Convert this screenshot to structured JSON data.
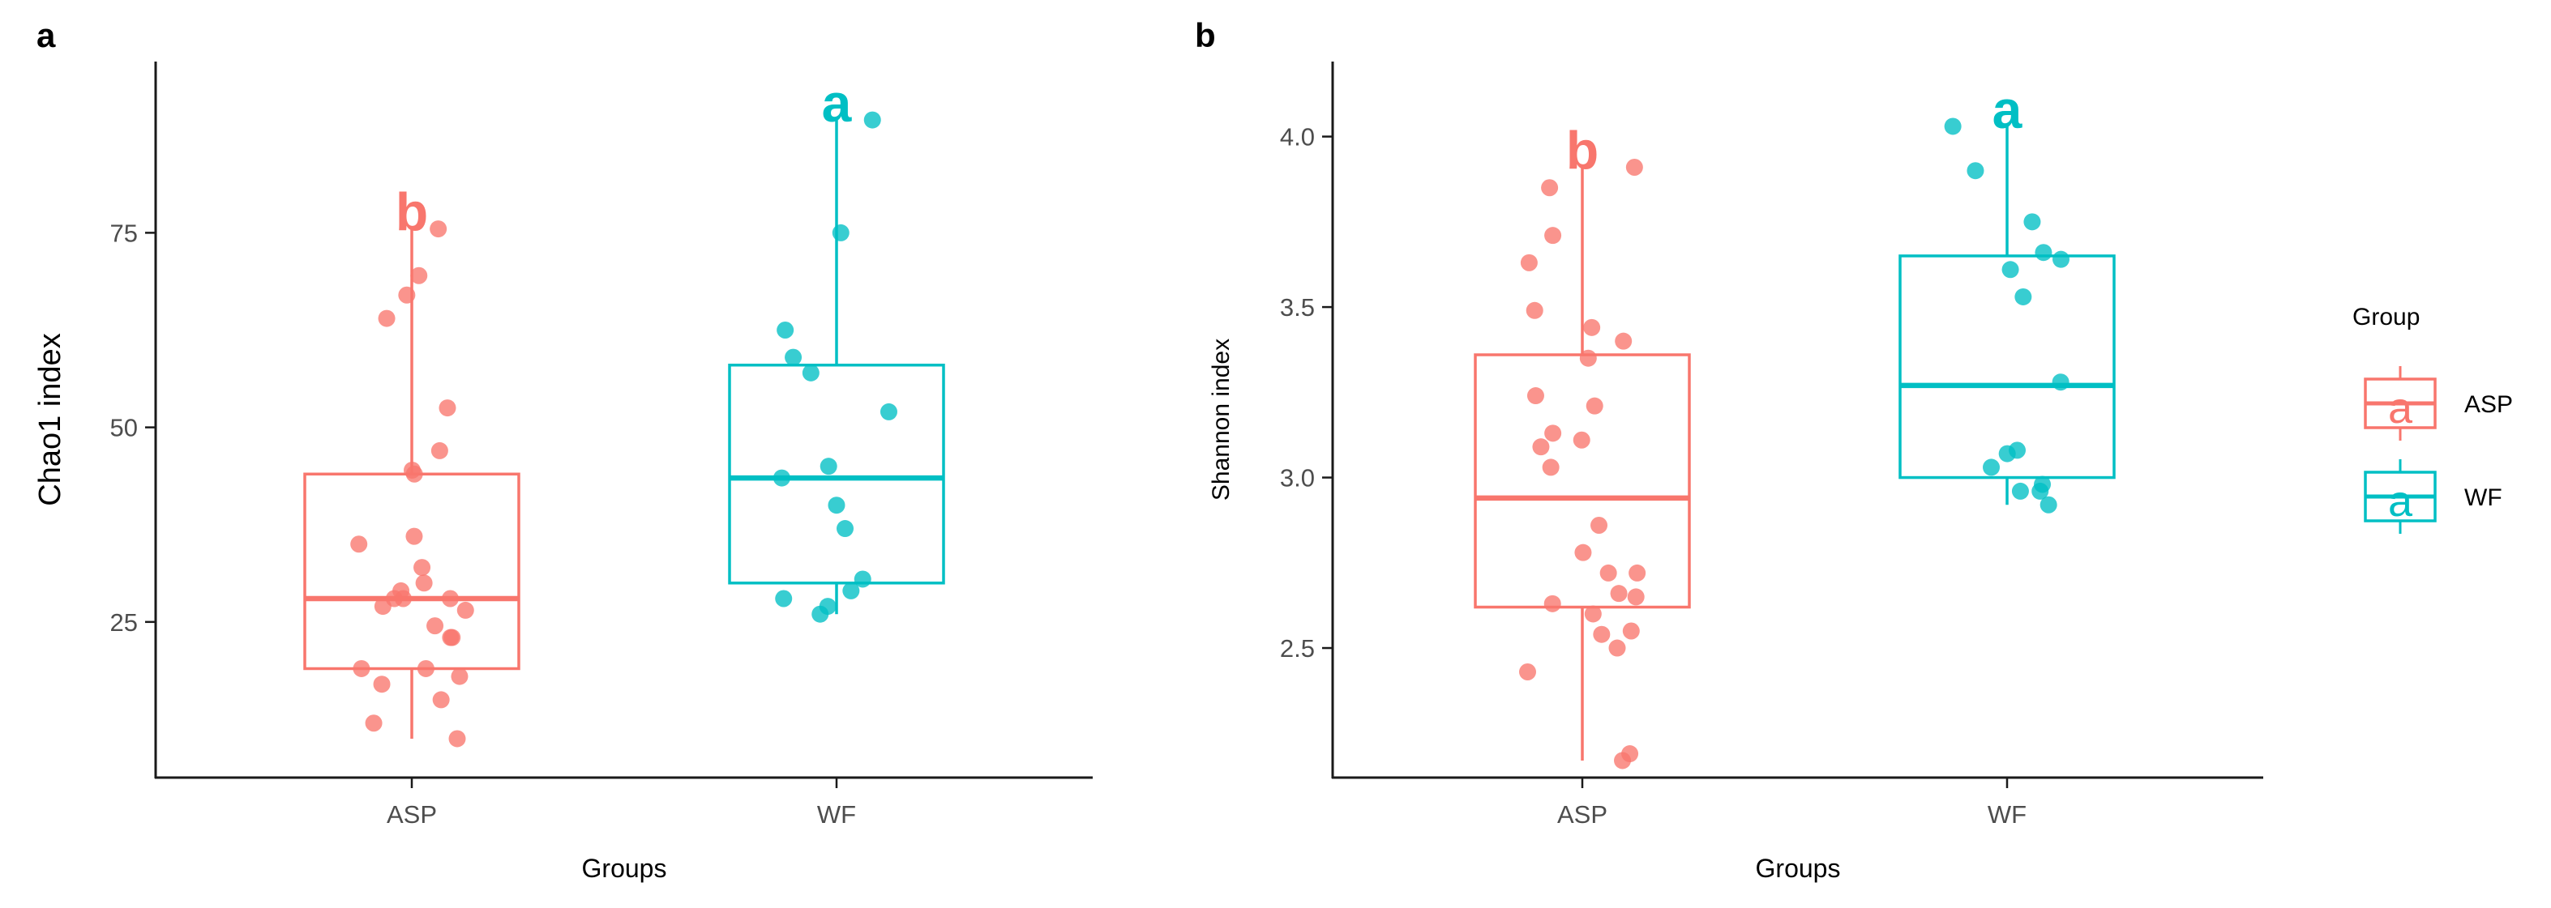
{
  "colors": {
    "ASP": "#F8766D",
    "WF": "#00BFC4",
    "axis": "#1a1a1a",
    "tick_text": "#4d4d4d"
  },
  "legend": {
    "title": "Group",
    "items": [
      {
        "label": "ASP",
        "key": "ASP",
        "glyph": "a"
      },
      {
        "label": "WF",
        "key": "WF",
        "glyph": "a"
      }
    ]
  },
  "chart_data": [
    {
      "type": "box",
      "panel_label": "a",
      "title": "",
      "xlabel": "Groups",
      "ylabel": "Chao1 index",
      "categories": [
        "ASP",
        "WF"
      ],
      "ylim": [
        5,
        97
      ],
      "yticks": [
        25,
        50,
        75
      ],
      "boxes": [
        {
          "group": "ASP",
          "min": 10,
          "q1": 19,
          "median": 28,
          "q3": 44,
          "max": 75.5,
          "sig_letter": "b",
          "points": [
            75.5,
            69.5,
            67,
            64,
            52.5,
            47,
            44.5,
            44,
            36,
            35,
            32,
            30,
            29,
            28,
            28,
            28,
            27,
            26.5,
            24.5,
            23,
            23,
            19,
            19,
            18,
            17,
            15,
            12,
            10
          ]
        },
        {
          "group": "WF",
          "min": 26,
          "q1": 30,
          "median": 43.5,
          "q3": 58,
          "max": 89.5,
          "sig_letter": "a",
          "points": [
            89.5,
            75,
            62.5,
            59,
            57,
            52,
            45,
            43.5,
            40,
            37,
            30.5,
            29,
            28,
            27,
            26
          ]
        }
      ]
    },
    {
      "type": "box",
      "panel_label": "b",
      "title": "",
      "xlabel": "Groups",
      "ylabel": "Shannon index",
      "categories": [
        "ASP",
        "WF"
      ],
      "ylim": [
        2.12,
        4.22
      ],
      "yticks": [
        2.5,
        3.0,
        3.5,
        4.0
      ],
      "ytick_labels": [
        "2.5",
        "3.0",
        "3.5",
        "4.0"
      ],
      "boxes": [
        {
          "group": "ASP",
          "min": 2.17,
          "q1": 2.62,
          "median": 2.94,
          "q3": 3.36,
          "max": 3.91,
          "sig_letter": "b",
          "points": [
            3.91,
            3.85,
            3.71,
            3.63,
            3.49,
            3.44,
            3.4,
            3.35,
            3.24,
            3.21,
            3.13,
            3.11,
            3.09,
            3.03,
            2.86,
            2.78,
            2.72,
            2.72,
            2.66,
            2.65,
            2.63,
            2.6,
            2.55,
            2.54,
            2.5,
            2.43,
            2.19,
            2.17
          ]
        },
        {
          "group": "WF",
          "min": 2.92,
          "q1": 3.0,
          "median": 3.27,
          "q3": 3.65,
          "max": 4.03,
          "sig_letter": "a",
          "points": [
            4.03,
            3.9,
            3.75,
            3.66,
            3.64,
            3.61,
            3.53,
            3.28,
            3.08,
            3.07,
            3.03,
            2.98,
            2.96,
            2.96,
            2.92
          ]
        }
      ]
    }
  ]
}
